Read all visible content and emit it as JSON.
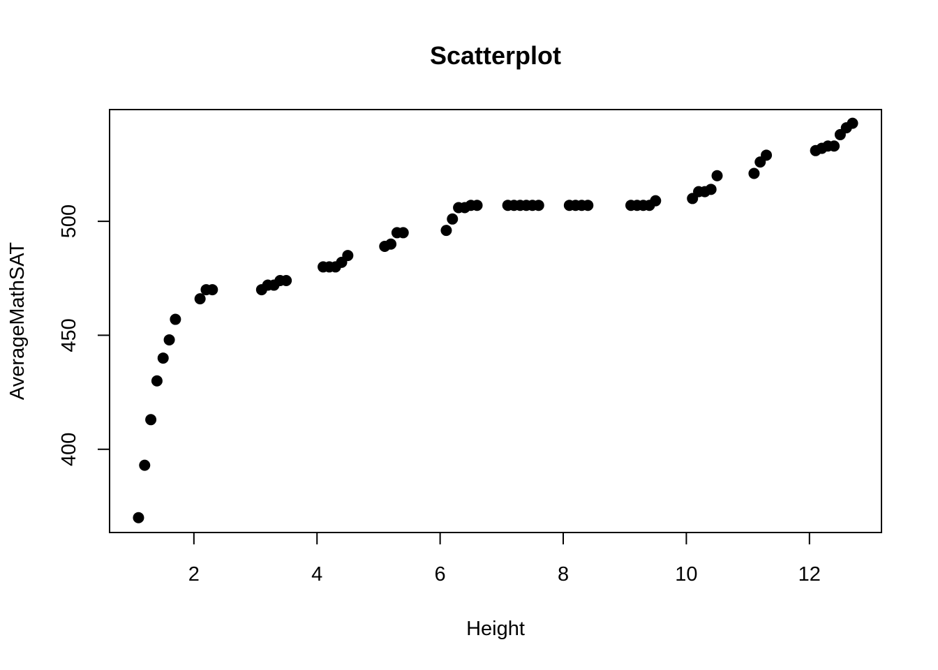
{
  "chart_data": {
    "type": "scatter",
    "title": "Scatterplot",
    "xlabel": "Height",
    "ylabel": "AverageMathSAT",
    "xlim": [
      0.63,
      13.17
    ],
    "ylim": [
      363.5,
      549
    ],
    "xticks": [
      2,
      4,
      6,
      8,
      10,
      12
    ],
    "yticks": [
      400,
      450,
      500
    ],
    "x_tick_labels": [
      "2",
      "4",
      "6",
      "8",
      "10",
      "12"
    ],
    "y_tick_labels": [
      "400",
      "450",
      "500"
    ],
    "grid": false,
    "legend": null,
    "point_color": "#000000",
    "x": [
      1.1,
      1.2,
      1.3,
      1.4,
      1.5,
      1.6,
      1.7,
      2.1,
      2.2,
      2.3,
      3.1,
      3.2,
      3.3,
      3.4,
      3.5,
      4.1,
      4.2,
      4.3,
      4.4,
      4.5,
      5.1,
      5.2,
      5.3,
      5.4,
      6.1,
      6.2,
      6.3,
      6.4,
      6.5,
      6.6,
      7.1,
      7.2,
      7.3,
      7.4,
      7.5,
      7.6,
      8.1,
      8.2,
      8.3,
      8.4,
      9.1,
      9.2,
      9.3,
      9.4,
      9.5,
      10.1,
      10.2,
      10.3,
      10.4,
      10.5,
      11.1,
      11.2,
      11.3,
      12.1,
      12.2,
      12.3,
      12.4,
      12.5,
      12.6,
      12.7
    ],
    "y": [
      370,
      393,
      413,
      430,
      440,
      448,
      457,
      466,
      470,
      470,
      470,
      472,
      472,
      474,
      474,
      480,
      480,
      480,
      482,
      485,
      489,
      490,
      495,
      495,
      496,
      501,
      506,
      506,
      507,
      507,
      507,
      507,
      507,
      507,
      507,
      507,
      507,
      507,
      507,
      507,
      507,
      507,
      507,
      507,
      509,
      510,
      513,
      513,
      514,
      520,
      521,
      526,
      529,
      531,
      532,
      533,
      533,
      538,
      541,
      543
    ]
  }
}
